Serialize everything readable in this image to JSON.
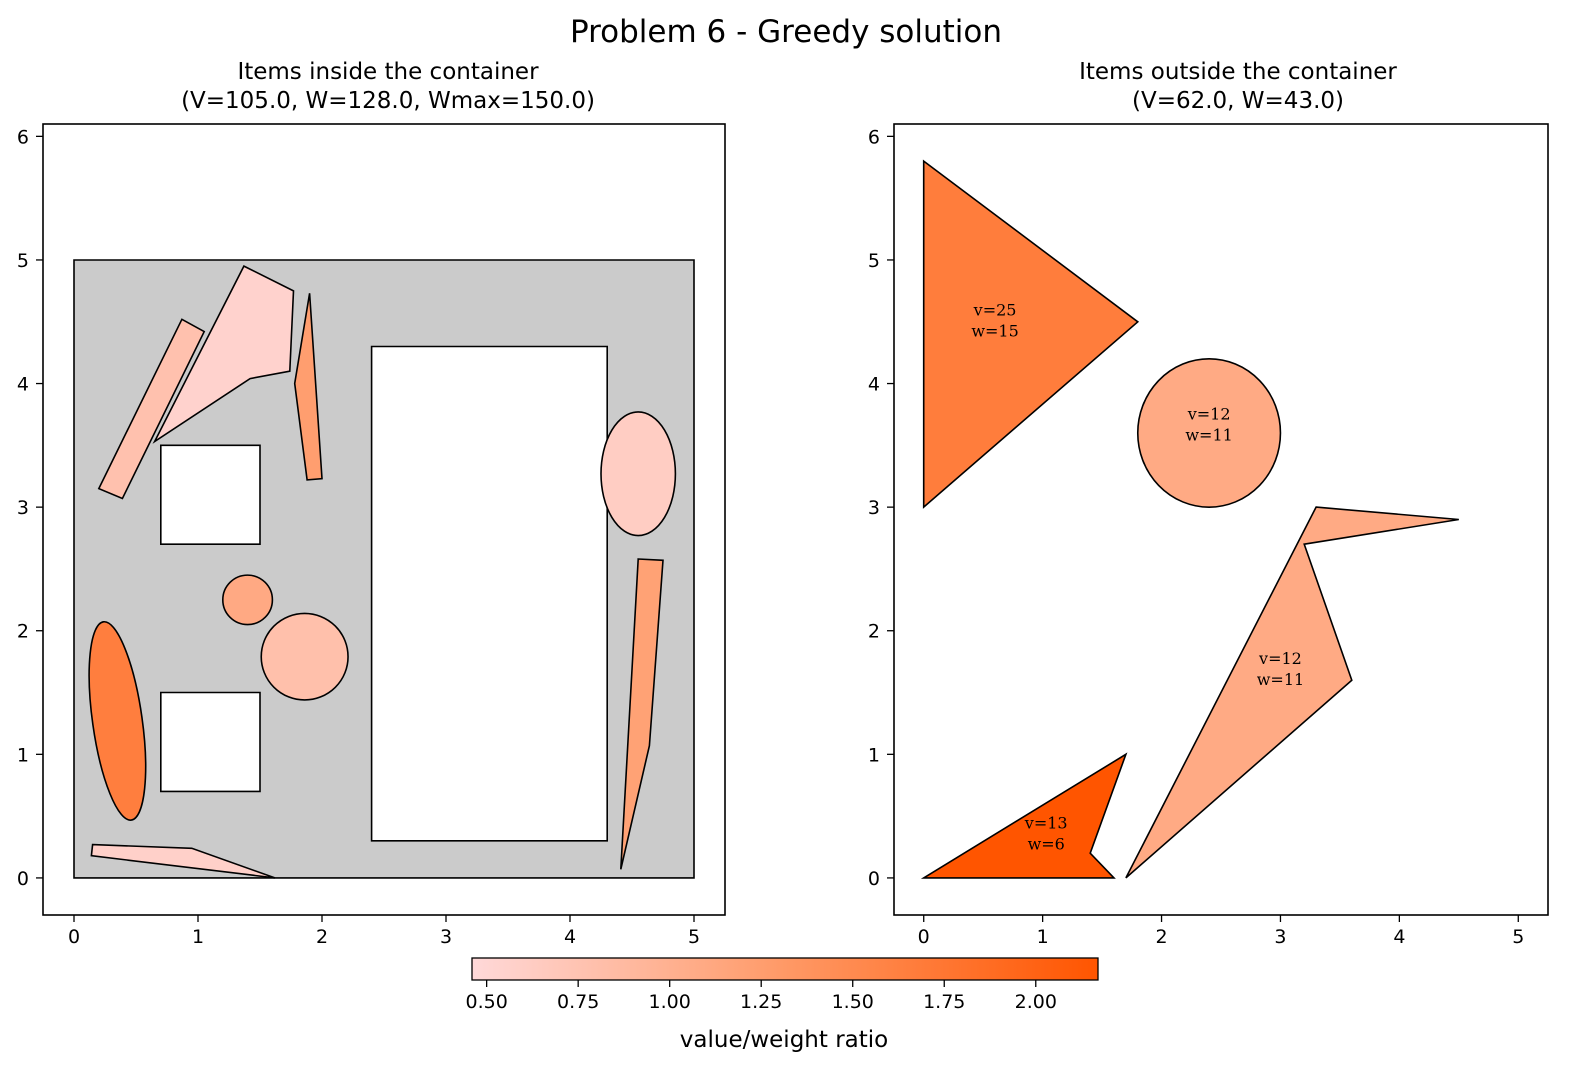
{
  "figure": {
    "suptitle": "Problem 6 - Greedy solution"
  },
  "chart_data": [
    {
      "type": "geometry",
      "title_line1": "Items inside the container",
      "title_line2": "(V=105.0, W=128.0, Wmax=150.0)",
      "xlim": [
        -0.25,
        5.25
      ],
      "ylim": [
        -0.3,
        6.1
      ],
      "xticks": [
        0,
        1,
        2,
        3,
        4,
        5
      ],
      "yticks": [
        0,
        1,
        2,
        3,
        4,
        5,
        6
      ],
      "grid": false,
      "container": {
        "color": "#cbcbcb",
        "points": [
          [
            0,
            0
          ],
          [
            5,
            0
          ],
          [
            5,
            5
          ],
          [
            0,
            5
          ]
        ]
      },
      "holes": [
        {
          "points": [
            [
              0.7,
              2.7
            ],
            [
              1.5,
              2.7
            ],
            [
              1.5,
              3.5
            ],
            [
              0.7,
              3.5
            ]
          ]
        },
        {
          "points": [
            [
              0.7,
              0.7
            ],
            [
              1.5,
              0.7
            ],
            [
              1.5,
              1.5
            ],
            [
              0.7,
              1.5
            ]
          ]
        },
        {
          "points": [
            [
              2.4,
              0.3
            ],
            [
              4.3,
              0.3
            ],
            [
              4.3,
              4.3
            ],
            [
              2.4,
              4.3
            ]
          ]
        }
      ],
      "items": [
        {
          "kind": "polygon",
          "ratio": 0.78,
          "points": [
            [
              0.2,
              3.15
            ],
            [
              0.87,
              4.52
            ],
            [
              1.05,
              4.42
            ],
            [
              0.39,
              3.07
            ]
          ]
        },
        {
          "kind": "polygon",
          "ratio": 0.55,
          "points": [
            [
              0.65,
              3.53
            ],
            [
              1.37,
              4.95
            ],
            [
              1.77,
              4.75
            ],
            [
              1.74,
              4.1
            ],
            [
              1.42,
              4.04
            ]
          ]
        },
        {
          "kind": "polygon",
          "ratio": 1.25,
          "points": [
            [
              1.9,
              4.73
            ],
            [
              1.78,
              4.0
            ],
            [
              1.88,
              3.22
            ],
            [
              2.0,
              3.23
            ]
          ]
        },
        {
          "kind": "ellipse",
          "ratio": 0.62,
          "cx": 4.55,
          "cy": 3.27,
          "rx": 0.3,
          "ry": 0.5,
          "angle": 0
        },
        {
          "kind": "polygon",
          "ratio": 1.2,
          "points": [
            [
              4.55,
              2.58
            ],
            [
              4.75,
              2.57
            ],
            [
              4.64,
              1.07
            ],
            [
              4.41,
              0.07
            ]
          ]
        },
        {
          "kind": "circle",
          "ratio": 1.1,
          "cx": 1.4,
          "cy": 2.25,
          "r": 0.2
        },
        {
          "kind": "circle",
          "ratio": 0.8,
          "cx": 1.86,
          "cy": 1.79,
          "r": 0.35
        },
        {
          "kind": "ellipse",
          "ratio": 1.65,
          "cx": 0.35,
          "cy": 1.27,
          "rx": 0.2,
          "ry": 0.81,
          "angle": -8
        },
        {
          "kind": "polygon",
          "ratio": 0.58,
          "points": [
            [
              0.15,
              0.27
            ],
            [
              0.95,
              0.24
            ],
            [
              1.62,
              0
            ],
            [
              0.14,
              0.18
            ]
          ]
        }
      ],
      "annotations": []
    },
    {
      "type": "geometry",
      "title_line1": "Items outside the container",
      "title_line2": "(V=62.0, W=43.0)",
      "xlim": [
        -0.25,
        5.25
      ],
      "ylim": [
        -0.3,
        6.1
      ],
      "xticks": [
        0,
        1,
        2,
        3,
        4,
        5
      ],
      "yticks": [
        0,
        1,
        2,
        3,
        4,
        5,
        6
      ],
      "grid": false,
      "items": [
        {
          "kind": "polygon",
          "ratio": 1.67,
          "points": [
            [
              0,
              5.8
            ],
            [
              1.8,
              4.5
            ],
            [
              0,
              3.0
            ]
          ]
        },
        {
          "kind": "circle",
          "ratio": 1.09,
          "cx": 2.4,
          "cy": 3.6,
          "r": 0.6
        },
        {
          "kind": "polygon",
          "ratio": 1.09,
          "points": [
            [
              3.3,
              3.0
            ],
            [
              4.5,
              2.9
            ],
            [
              3.2,
              2.7
            ],
            [
              3.6,
              1.6
            ],
            [
              1.7,
              0
            ]
          ]
        },
        {
          "kind": "polygon",
          "ratio": 2.17,
          "points": [
            [
              0,
              0
            ],
            [
              1.7,
              1.0
            ],
            [
              1.4,
              0.2
            ],
            [
              1.6,
              0
            ]
          ]
        }
      ],
      "annotations": [
        {
          "x": 0.6,
          "y": 4.55,
          "line1": "v=25",
          "line2": "w=15"
        },
        {
          "x": 2.4,
          "y": 3.71,
          "line1": "v=12",
          "line2": "w=11"
        },
        {
          "x": 3.0,
          "y": 1.73,
          "line1": "v=12",
          "line2": "w=11"
        },
        {
          "x": 1.03,
          "y": 0.4,
          "line1": "v=13",
          "line2": "w=6"
        }
      ]
    }
  ],
  "colorbar": {
    "label": "value/weight ratio",
    "vmin": 0.46,
    "vmax": 2.17,
    "ticks": [
      "0.50",
      "0.75",
      "1.00",
      "1.25",
      "1.50",
      "1.75",
      "2.00"
    ],
    "color_low": "#ffd9d9",
    "color_mid": "#ff9966",
    "color_high": "#ff5500"
  }
}
